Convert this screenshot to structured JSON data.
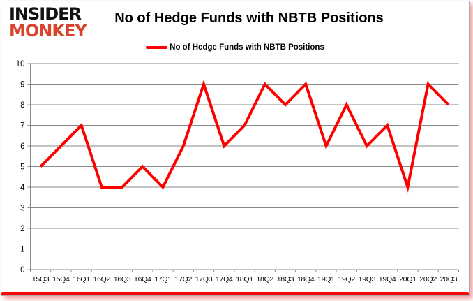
{
  "logo": {
    "line1": "INSIDER",
    "line2": "MONKEY"
  },
  "title": "No of Hedge Funds with NBTB Positions",
  "legend": {
    "label": "No of Hedge Funds with NBTB Positions"
  },
  "colors": {
    "series_line": "#FE0000",
    "logo_accent": "#D8432C",
    "logo_primary": "#121212",
    "grid": "#8A8A8A",
    "axis": "#8A8A8A",
    "label_text": "#000000",
    "bottom_bar": "#F90606"
  },
  "chart_data": {
    "type": "line",
    "title": "No of Hedge Funds with NBTB Positions",
    "categories": [
      "15Q3",
      "15Q4",
      "16Q1",
      "16Q2",
      "16Q3",
      "16Q4",
      "17Q1",
      "17Q2",
      "17Q3",
      "17Q4",
      "18Q1",
      "18Q2",
      "18Q3",
      "18Q4",
      "19Q1",
      "19Q2",
      "19Q3",
      "19Q4",
      "20Q1",
      "20Q2",
      "20Q3"
    ],
    "series": [
      {
        "name": "No of Hedge Funds with NBTB Positions",
        "color": "#FE0000",
        "values": [
          5,
          6,
          7,
          4,
          4,
          5,
          4,
          6,
          9,
          6,
          7,
          9,
          8,
          9,
          6,
          8,
          6,
          7,
          4,
          9,
          8
        ]
      }
    ],
    "xlabel": "",
    "ylabel": "",
    "ylim": [
      0,
      10
    ],
    "ytick_step": 1,
    "grid": true,
    "legend_position": "top"
  }
}
